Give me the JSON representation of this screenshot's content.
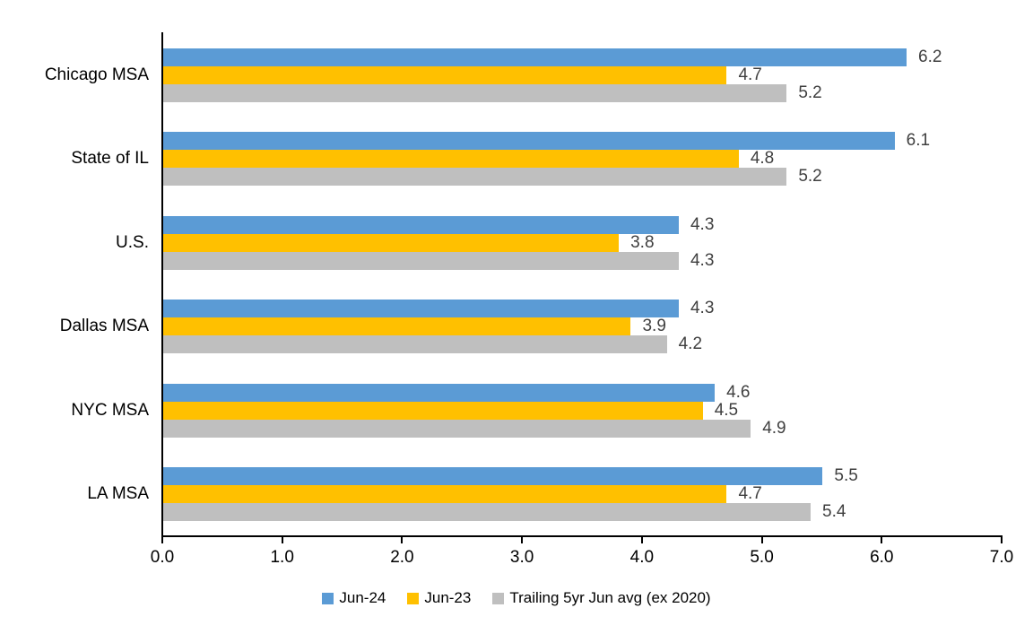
{
  "chart_data": {
    "type": "bar",
    "orientation": "horizontal",
    "title": "",
    "xlabel": "",
    "ylabel": "",
    "grid": false,
    "legend_position": "bottom-center",
    "xlim": [
      0,
      7
    ],
    "x_ticks": [
      "0.0",
      "1.0",
      "2.0",
      "3.0",
      "4.0",
      "5.0",
      "6.0",
      "7.0"
    ],
    "categories": [
      "Chicago MSA",
      "State of IL",
      "U.S.",
      "Dallas MSA",
      "NYC MSA",
      "LA MSA"
    ],
    "series": [
      {
        "name": "Jun-24",
        "color": "#5B9BD5",
        "values": [
          6.2,
          6.1,
          4.3,
          4.3,
          4.6,
          5.5
        ],
        "labels": [
          "6.2",
          "6.1",
          "4.3",
          "4.3",
          "4.6",
          "5.5"
        ]
      },
      {
        "name": "Jun-23",
        "color": "#FFC000",
        "values": [
          4.7,
          4.8,
          3.8,
          3.9,
          4.5,
          4.7
        ],
        "labels": [
          "4.7",
          "4.8",
          "3.8",
          "3.9",
          "4.5",
          "4.7"
        ]
      },
      {
        "name": "Trailing 5yr Jun avg (ex 2020)",
        "color": "#BFBFBF",
        "values": [
          5.2,
          5.2,
          4.3,
          4.2,
          4.9,
          5.4
        ],
        "labels": [
          "5.2",
          "5.2",
          "4.3",
          "4.2",
          "4.9",
          "5.4"
        ]
      }
    ],
    "colors": {
      "axis": "#000000",
      "data_label": "#3F3F3F",
      "category_label": "#000000",
      "background": "#FFFFFF"
    }
  }
}
